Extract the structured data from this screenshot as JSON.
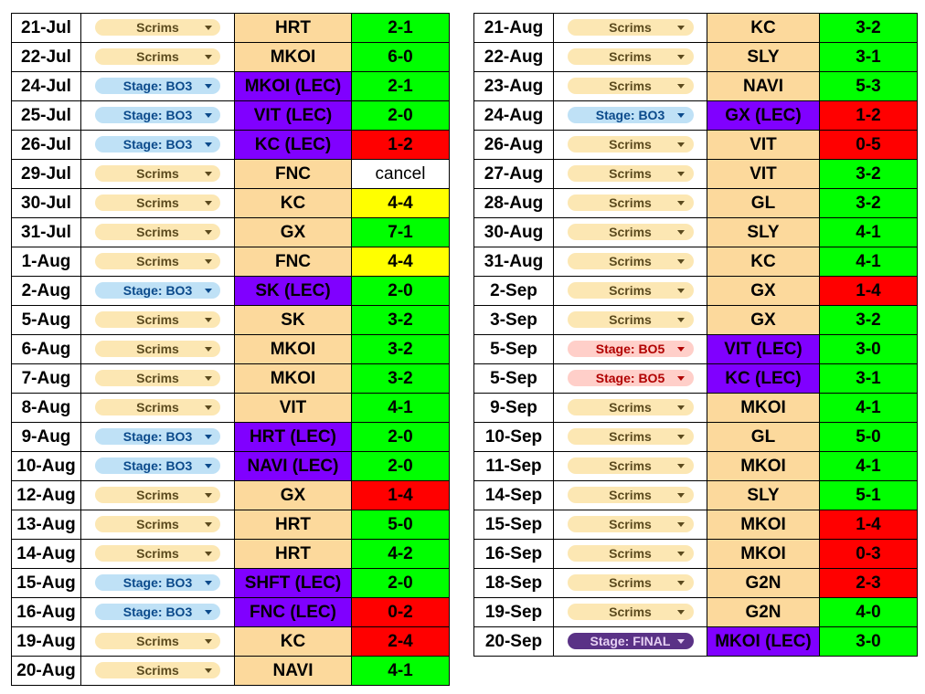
{
  "colors": {
    "opponent_scrim_bg": "#fcd99c",
    "opponent_lec_bg": "#8000ff",
    "win": "#00ff00",
    "loss": "#ff0000",
    "draw": "#ffff00",
    "scrims_pill": "#fce7b3",
    "bo3_pill": "#bfe1f6",
    "bo5_pill": "#ffcfc9",
    "final_pill": "#5a3286"
  },
  "icons": {
    "dropdown": "chevron-down-icon"
  },
  "left_table": [
    {
      "date": "21-Jul",
      "stage": "Scrims",
      "stage_type": "scrims",
      "opponent": "HRT",
      "lec": false,
      "score": "2-1",
      "result": "win"
    },
    {
      "date": "22-Jul",
      "stage": "Scrims",
      "stage_type": "scrims",
      "opponent": "MKOI",
      "lec": false,
      "score": "6-0",
      "result": "win"
    },
    {
      "date": "24-Jul",
      "stage": "Stage: BO3",
      "stage_type": "bo3",
      "opponent": "MKOI (LEC)",
      "lec": true,
      "score": "2-1",
      "result": "win"
    },
    {
      "date": "25-Jul",
      "stage": "Stage: BO3",
      "stage_type": "bo3",
      "opponent": "VIT (LEC)",
      "lec": true,
      "score": "2-0",
      "result": "win"
    },
    {
      "date": "26-Jul",
      "stage": "Stage: BO3",
      "stage_type": "bo3",
      "opponent": "KC (LEC)",
      "lec": true,
      "score": "1-2",
      "result": "loss"
    },
    {
      "date": "29-Jul",
      "stage": "Scrims",
      "stage_type": "scrims",
      "opponent": "FNC",
      "lec": false,
      "score": "cancel",
      "result": "cancel"
    },
    {
      "date": "30-Jul",
      "stage": "Scrims",
      "stage_type": "scrims",
      "opponent": "KC",
      "lec": false,
      "score": "4-4",
      "result": "draw"
    },
    {
      "date": "31-Jul",
      "stage": "Scrims",
      "stage_type": "scrims",
      "opponent": "GX",
      "lec": false,
      "score": "7-1",
      "result": "win"
    },
    {
      "date": "1-Aug",
      "stage": "Scrims",
      "stage_type": "scrims",
      "opponent": "FNC",
      "lec": false,
      "score": "4-4",
      "result": "draw"
    },
    {
      "date": "2-Aug",
      "stage": "Stage: BO3",
      "stage_type": "bo3",
      "opponent": "SK (LEC)",
      "lec": true,
      "score": "2-0",
      "result": "win"
    },
    {
      "date": "5-Aug",
      "stage": "Scrims",
      "stage_type": "scrims",
      "opponent": "SK",
      "lec": false,
      "score": "3-2",
      "result": "win"
    },
    {
      "date": "6-Aug",
      "stage": "Scrims",
      "stage_type": "scrims",
      "opponent": "MKOI",
      "lec": false,
      "score": "3-2",
      "result": "win"
    },
    {
      "date": "7-Aug",
      "stage": "Scrims",
      "stage_type": "scrims",
      "opponent": "MKOI",
      "lec": false,
      "score": "3-2",
      "result": "win"
    },
    {
      "date": "8-Aug",
      "stage": "Scrims",
      "stage_type": "scrims",
      "opponent": "VIT",
      "lec": false,
      "score": "4-1",
      "result": "win"
    },
    {
      "date": "9-Aug",
      "stage": "Stage: BO3",
      "stage_type": "bo3",
      "opponent": "HRT (LEC)",
      "lec": true,
      "score": "2-0",
      "result": "win"
    },
    {
      "date": "10-Aug",
      "stage": "Stage: BO3",
      "stage_type": "bo3",
      "opponent": "NAVI (LEC)",
      "lec": true,
      "score": "2-0",
      "result": "win"
    },
    {
      "date": "12-Aug",
      "stage": "Scrims",
      "stage_type": "scrims",
      "opponent": "GX",
      "lec": false,
      "score": "1-4",
      "result": "loss"
    },
    {
      "date": "13-Aug",
      "stage": "Scrims",
      "stage_type": "scrims",
      "opponent": "HRT",
      "lec": false,
      "score": "5-0",
      "result": "win"
    },
    {
      "date": "14-Aug",
      "stage": "Scrims",
      "stage_type": "scrims",
      "opponent": "HRT",
      "lec": false,
      "score": "4-2",
      "result": "win"
    },
    {
      "date": "15-Aug",
      "stage": "Stage: BO3",
      "stage_type": "bo3",
      "opponent": "SHFT (LEC)",
      "lec": true,
      "score": "2-0",
      "result": "win"
    },
    {
      "date": "16-Aug",
      "stage": "Stage: BO3",
      "stage_type": "bo3",
      "opponent": "FNC (LEC)",
      "lec": true,
      "score": "0-2",
      "result": "loss"
    },
    {
      "date": "19-Aug",
      "stage": "Scrims",
      "stage_type": "scrims",
      "opponent": "KC",
      "lec": false,
      "score": "2-4",
      "result": "loss"
    },
    {
      "date": "20-Aug",
      "stage": "Scrims",
      "stage_type": "scrims",
      "opponent": "NAVI",
      "lec": false,
      "score": "4-1",
      "result": "win"
    }
  ],
  "right_table": [
    {
      "date": "21-Aug",
      "stage": "Scrims",
      "stage_type": "scrims",
      "opponent": "KC",
      "lec": false,
      "score": "3-2",
      "result": "win"
    },
    {
      "date": "22-Aug",
      "stage": "Scrims",
      "stage_type": "scrims",
      "opponent": "SLY",
      "lec": false,
      "score": "3-1",
      "result": "win"
    },
    {
      "date": "23-Aug",
      "stage": "Scrims",
      "stage_type": "scrims",
      "opponent": "NAVI",
      "lec": false,
      "score": "5-3",
      "result": "win"
    },
    {
      "date": "24-Aug",
      "stage": "Stage: BO3",
      "stage_type": "bo3",
      "opponent": "GX (LEC)",
      "lec": true,
      "score": "1-2",
      "result": "loss"
    },
    {
      "date": "26-Aug",
      "stage": "Scrims",
      "stage_type": "scrims",
      "opponent": "VIT",
      "lec": false,
      "score": "0-5",
      "result": "loss"
    },
    {
      "date": "27-Aug",
      "stage": "Scrims",
      "stage_type": "scrims",
      "opponent": "VIT",
      "lec": false,
      "score": "3-2",
      "result": "win"
    },
    {
      "date": "28-Aug",
      "stage": "Scrims",
      "stage_type": "scrims",
      "opponent": "GL",
      "lec": false,
      "score": "3-2",
      "result": "win"
    },
    {
      "date": "30-Aug",
      "stage": "Scrims",
      "stage_type": "scrims",
      "opponent": "SLY",
      "lec": false,
      "score": "4-1",
      "result": "win"
    },
    {
      "date": "31-Aug",
      "stage": "Scrims",
      "stage_type": "scrims",
      "opponent": "KC",
      "lec": false,
      "score": "4-1",
      "result": "win"
    },
    {
      "date": "2-Sep",
      "stage": "Scrims",
      "stage_type": "scrims",
      "opponent": "GX",
      "lec": false,
      "score": "1-4",
      "result": "loss"
    },
    {
      "date": "3-Sep",
      "stage": "Scrims",
      "stage_type": "scrims",
      "opponent": "GX",
      "lec": false,
      "score": "3-2",
      "result": "win"
    },
    {
      "date": "5-Sep",
      "stage": "Stage: BO5",
      "stage_type": "bo5",
      "opponent": "VIT (LEC)",
      "lec": true,
      "score": "3-0",
      "result": "win"
    },
    {
      "date": "5-Sep",
      "stage": "Stage: BO5",
      "stage_type": "bo5",
      "opponent": "KC (LEC)",
      "lec": true,
      "score": "3-1",
      "result": "win"
    },
    {
      "date": "9-Sep",
      "stage": "Scrims",
      "stage_type": "scrims",
      "opponent": "MKOI",
      "lec": false,
      "score": "4-1",
      "result": "win"
    },
    {
      "date": "10-Sep",
      "stage": "Scrims",
      "stage_type": "scrims",
      "opponent": "GL",
      "lec": false,
      "score": "5-0",
      "result": "win"
    },
    {
      "date": "11-Sep",
      "stage": "Scrims",
      "stage_type": "scrims",
      "opponent": "MKOI",
      "lec": false,
      "score": "4-1",
      "result": "win"
    },
    {
      "date": "14-Sep",
      "stage": "Scrims",
      "stage_type": "scrims",
      "opponent": "SLY",
      "lec": false,
      "score": "5-1",
      "result": "win"
    },
    {
      "date": "15-Sep",
      "stage": "Scrims",
      "stage_type": "scrims",
      "opponent": "MKOI",
      "lec": false,
      "score": "1-4",
      "result": "loss"
    },
    {
      "date": "16-Sep",
      "stage": "Scrims",
      "stage_type": "scrims",
      "opponent": "MKOI",
      "lec": false,
      "score": "0-3",
      "result": "loss"
    },
    {
      "date": "18-Sep",
      "stage": "Scrims",
      "stage_type": "scrims",
      "opponent": "G2N",
      "lec": false,
      "score": "2-3",
      "result": "loss"
    },
    {
      "date": "19-Sep",
      "stage": "Scrims",
      "stage_type": "scrims",
      "opponent": "G2N",
      "lec": false,
      "score": "4-0",
      "result": "win"
    },
    {
      "date": "20-Sep",
      "stage": "Stage: FINAL",
      "stage_type": "final",
      "opponent": "MKOI (LEC)",
      "lec": true,
      "score": "3-0",
      "result": "win"
    }
  ]
}
